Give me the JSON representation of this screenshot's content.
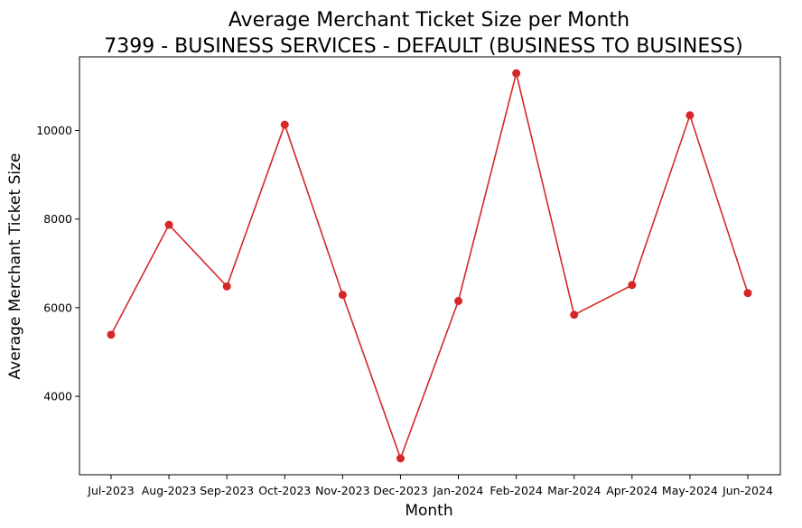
{
  "chart_data": {
    "type": "line",
    "title": "Average Merchant Ticket Size per Month",
    "subtitle": "7399 - BUSINESS SERVICES - DEFAULT (BUSINESS TO BUSINESS)",
    "xlabel": "Month",
    "ylabel": "Average Merchant Ticket Size",
    "categories": [
      "Jul-2023",
      "Aug-2023",
      "Sep-2023",
      "Oct-2023",
      "Nov-2023",
      "Dec-2023",
      "Jan-2024",
      "Feb-2024",
      "Mar-2024",
      "Apr-2024",
      "May-2024",
      "Jun-2024"
    ],
    "series": [
      {
        "values": [
          5390,
          7870,
          6480,
          10130,
          6290,
          2600,
          6150,
          11290,
          5840,
          6510,
          10340,
          6330
        ],
        "color": "#d62728"
      }
    ],
    "yticks": [
      4000,
      6000,
      8000,
      10000
    ],
    "ylim": [
      2230,
      11660
    ],
    "grid": false,
    "legend": "none"
  }
}
